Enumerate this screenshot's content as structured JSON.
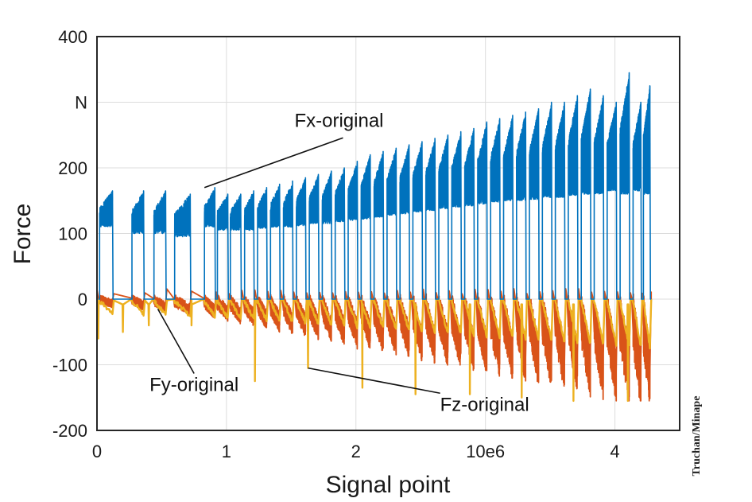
{
  "chart_data": {
    "type": "line",
    "title": "",
    "xlabel": "Signal point",
    "ylabel": "Force",
    "unit_label": "N",
    "xlim": [
      0,
      4.5
    ],
    "ylim": [
      -200,
      400
    ],
    "x_ticks": [
      {
        "value": 0,
        "label": "0"
      },
      {
        "value": 1,
        "label": "1"
      },
      {
        "value": 2,
        "label": "2"
      },
      {
        "value": 3,
        "label": "10e6"
      },
      {
        "value": 4,
        "label": "4"
      }
    ],
    "y_ticks": [
      {
        "value": 400,
        "label": "400"
      },
      {
        "value": 300,
        "label": "N"
      },
      {
        "value": 200,
        "label": "200"
      },
      {
        "value": 100,
        "label": "100"
      },
      {
        "value": 0,
        "label": "0"
      },
      {
        "value": -100,
        "label": "-100"
      },
      {
        "value": -200,
        "label": "-200"
      }
    ],
    "grid": true,
    "series": [
      {
        "name": "Fx-original",
        "color": "#0072BD",
        "description": "Repeated loading cycles; each cycle jumps from ~0 to an upper plateau then returns to 0",
        "cycles": [
          {
            "start": 0.02,
            "end": 0.12,
            "low": 110,
            "high": 165
          },
          {
            "start": 0.27,
            "end": 0.36,
            "low": 100,
            "high": 165
          },
          {
            "start": 0.44,
            "end": 0.53,
            "low": 100,
            "high": 165
          },
          {
            "start": 0.6,
            "end": 0.72,
            "low": 95,
            "high": 160
          },
          {
            "start": 0.83,
            "end": 0.91,
            "low": 110,
            "high": 170
          },
          {
            "start": 0.93,
            "end": 1.01,
            "low": 105,
            "high": 160
          },
          {
            "start": 1.03,
            "end": 1.11,
            "low": 105,
            "high": 160
          },
          {
            "start": 1.14,
            "end": 1.21,
            "low": 105,
            "high": 165
          },
          {
            "start": 1.24,
            "end": 1.31,
            "low": 108,
            "high": 170
          },
          {
            "start": 1.34,
            "end": 1.41,
            "low": 110,
            "high": 175
          },
          {
            "start": 1.44,
            "end": 1.51,
            "low": 110,
            "high": 180
          },
          {
            "start": 1.54,
            "end": 1.61,
            "low": 112,
            "high": 185
          },
          {
            "start": 1.64,
            "end": 1.71,
            "low": 115,
            "high": 190
          },
          {
            "start": 1.74,
            "end": 1.81,
            "low": 115,
            "high": 195
          },
          {
            "start": 1.84,
            "end": 1.91,
            "low": 118,
            "high": 200
          },
          {
            "start": 1.94,
            "end": 2.01,
            "low": 120,
            "high": 210
          },
          {
            "start": 2.04,
            "end": 2.11,
            "low": 122,
            "high": 220
          },
          {
            "start": 2.14,
            "end": 2.21,
            "low": 125,
            "high": 225
          },
          {
            "start": 2.24,
            "end": 2.31,
            "low": 128,
            "high": 230
          },
          {
            "start": 2.34,
            "end": 2.41,
            "low": 130,
            "high": 235
          },
          {
            "start": 2.44,
            "end": 2.51,
            "low": 133,
            "high": 240
          },
          {
            "start": 2.54,
            "end": 2.61,
            "low": 135,
            "high": 245
          },
          {
            "start": 2.64,
            "end": 2.71,
            "low": 138,
            "high": 250
          },
          {
            "start": 2.74,
            "end": 2.81,
            "low": 140,
            "high": 255
          },
          {
            "start": 2.84,
            "end": 2.91,
            "low": 142,
            "high": 260
          },
          {
            "start": 2.94,
            "end": 3.01,
            "low": 145,
            "high": 270
          },
          {
            "start": 3.04,
            "end": 3.11,
            "low": 148,
            "high": 275
          },
          {
            "start": 3.14,
            "end": 3.21,
            "low": 150,
            "high": 280
          },
          {
            "start": 3.24,
            "end": 3.31,
            "low": 150,
            "high": 285
          },
          {
            "start": 3.34,
            "end": 3.41,
            "low": 152,
            "high": 290
          },
          {
            "start": 3.44,
            "end": 3.51,
            "low": 155,
            "high": 300
          },
          {
            "start": 3.54,
            "end": 3.61,
            "low": 155,
            "high": 300
          },
          {
            "start": 3.64,
            "end": 3.71,
            "low": 158,
            "high": 310
          },
          {
            "start": 3.74,
            "end": 3.81,
            "low": 160,
            "high": 320
          },
          {
            "start": 3.84,
            "end": 3.91,
            "low": 160,
            "high": 310
          },
          {
            "start": 3.94,
            "end": 4.01,
            "low": 165,
            "high": 300
          },
          {
            "start": 4.04,
            "end": 4.11,
            "low": 160,
            "high": 345
          },
          {
            "start": 4.14,
            "end": 4.2,
            "low": 165,
            "high": 300
          },
          {
            "start": 4.22,
            "end": 4.27,
            "low": 160,
            "high": 325
          }
        ]
      },
      {
        "name": "Fy-original",
        "color": "#D95319",
        "description": "Negative oscillating band during each loading cycle, deepening with signal point",
        "start_value": 15,
        "end_value": -150,
        "min": -155,
        "max": 20
      },
      {
        "name": "Fz-original",
        "color": "#EDB120",
        "description": "Slow negative drift per cycle with sharp downward spikes at cycle transitions",
        "spikes": [
          {
            "x": 0.01,
            "y": -60
          },
          {
            "x": 0.2,
            "y": -50
          },
          {
            "x": 0.4,
            "y": -40
          },
          {
            "x": 0.73,
            "y": -40
          },
          {
            "x": 1.22,
            "y": -125
          },
          {
            "x": 1.63,
            "y": -105
          },
          {
            "x": 2.05,
            "y": -135
          },
          {
            "x": 2.46,
            "y": -145
          },
          {
            "x": 2.88,
            "y": -145
          },
          {
            "x": 3.28,
            "y": -150
          },
          {
            "x": 3.68,
            "y": -155
          },
          {
            "x": 4.1,
            "y": -155
          }
        ]
      }
    ],
    "annotations": [
      {
        "text": "Fx-original",
        "series": "Fx-original",
        "x": 1.9,
        "y": 253,
        "point_x": 0.83,
        "point_y": 170
      },
      {
        "text": "Fy-original",
        "series": "Fy-original",
        "x": 0.75,
        "y": -140,
        "point_x": 0.47,
        "point_y": -15
      },
      {
        "text": "Fz-original",
        "series": "Fz-original",
        "x": 2.65,
        "y": -170,
        "point_x": 1.63,
        "point_y": -105
      }
    ]
  },
  "credit": "Truchan/Minape"
}
